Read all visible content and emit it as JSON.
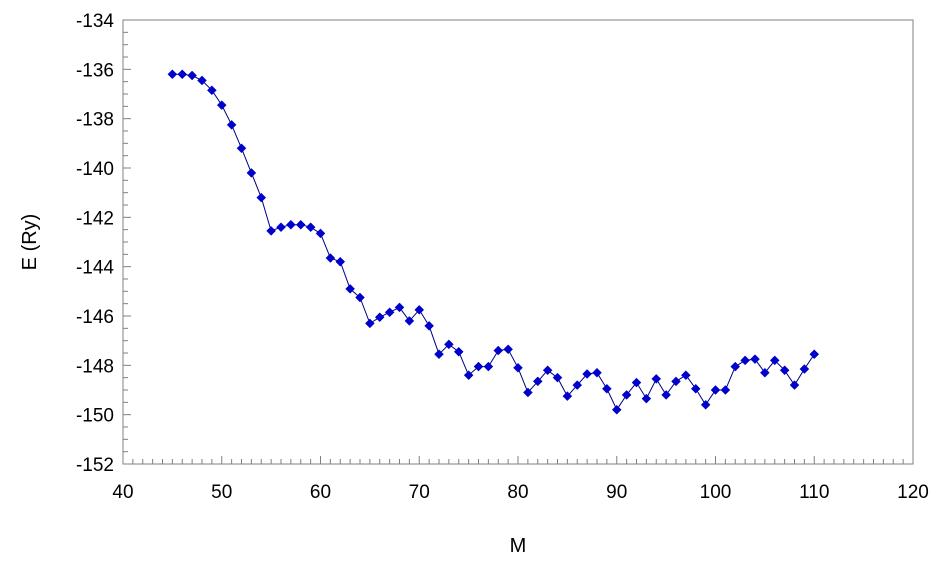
{
  "chart_data": {
    "type": "scatter",
    "xlabel": "M",
    "ylabel": "E (Ry)",
    "xlim": [
      40,
      120
    ],
    "ylim": [
      -152,
      -134
    ],
    "xticks": [
      40,
      50,
      60,
      70,
      80,
      90,
      100,
      110,
      120
    ],
    "yticks": [
      -134,
      -136,
      -138,
      -140,
      -142,
      -144,
      -146,
      -148,
      -150,
      -152
    ],
    "xtick_labels": [
      "40",
      "50",
      "60",
      "70",
      "80",
      "90",
      "100",
      "110",
      "120"
    ],
    "ytick_labels": [
      "-134",
      "-136",
      "-138",
      "-140",
      "-142",
      "-144",
      "-146",
      "-148",
      "-150",
      "-152"
    ],
    "grid": false,
    "legend": "none",
    "marker_color": "#0000CC",
    "line_color": "#000080",
    "marker": "diamond",
    "series": [
      {
        "x": [
          45,
          46,
          47,
          48,
          49,
          50,
          51,
          52,
          53,
          54,
          55,
          56,
          57,
          58,
          59,
          60,
          61,
          62,
          63,
          64,
          65,
          66,
          67,
          68,
          69,
          70,
          71,
          72,
          73,
          74,
          75,
          76,
          77,
          78,
          79,
          80,
          81,
          82,
          83,
          84,
          85,
          86,
          87,
          88,
          89,
          90,
          91,
          92,
          93,
          94,
          95,
          96,
          97,
          98,
          99,
          100,
          101,
          102,
          103,
          104,
          105,
          106,
          107,
          108,
          109,
          110
        ],
        "values": [
          -136.2,
          -136.2,
          -136.25,
          -136.45,
          -136.85,
          -137.45,
          -138.25,
          -139.2,
          -140.2,
          -141.2,
          -142.55,
          -142.4,
          -142.3,
          -142.3,
          -142.4,
          -142.65,
          -143.65,
          -143.8,
          -144.9,
          -145.25,
          -146.3,
          -146.05,
          -145.85,
          -145.65,
          -146.2,
          -145.75,
          -146.4,
          -147.55,
          -147.15,
          -147.45,
          -148.4,
          -148.05,
          -148.05,
          -147.4,
          -147.35,
          -148.1,
          -149.1,
          -148.65,
          -148.2,
          -148.5,
          -149.25,
          -148.8,
          -148.35,
          -148.3,
          -148.95,
          -149.8,
          -149.2,
          -148.7,
          -149.35,
          -148.55,
          -149.2,
          -148.65,
          -148.4,
          -148.95,
          -149.6,
          -149.0,
          -149.0,
          -148.05,
          -147.8,
          -147.75,
          -148.3,
          -147.8,
          -148.2,
          -148.8,
          -148.15,
          -147.55
        ]
      }
    ]
  }
}
